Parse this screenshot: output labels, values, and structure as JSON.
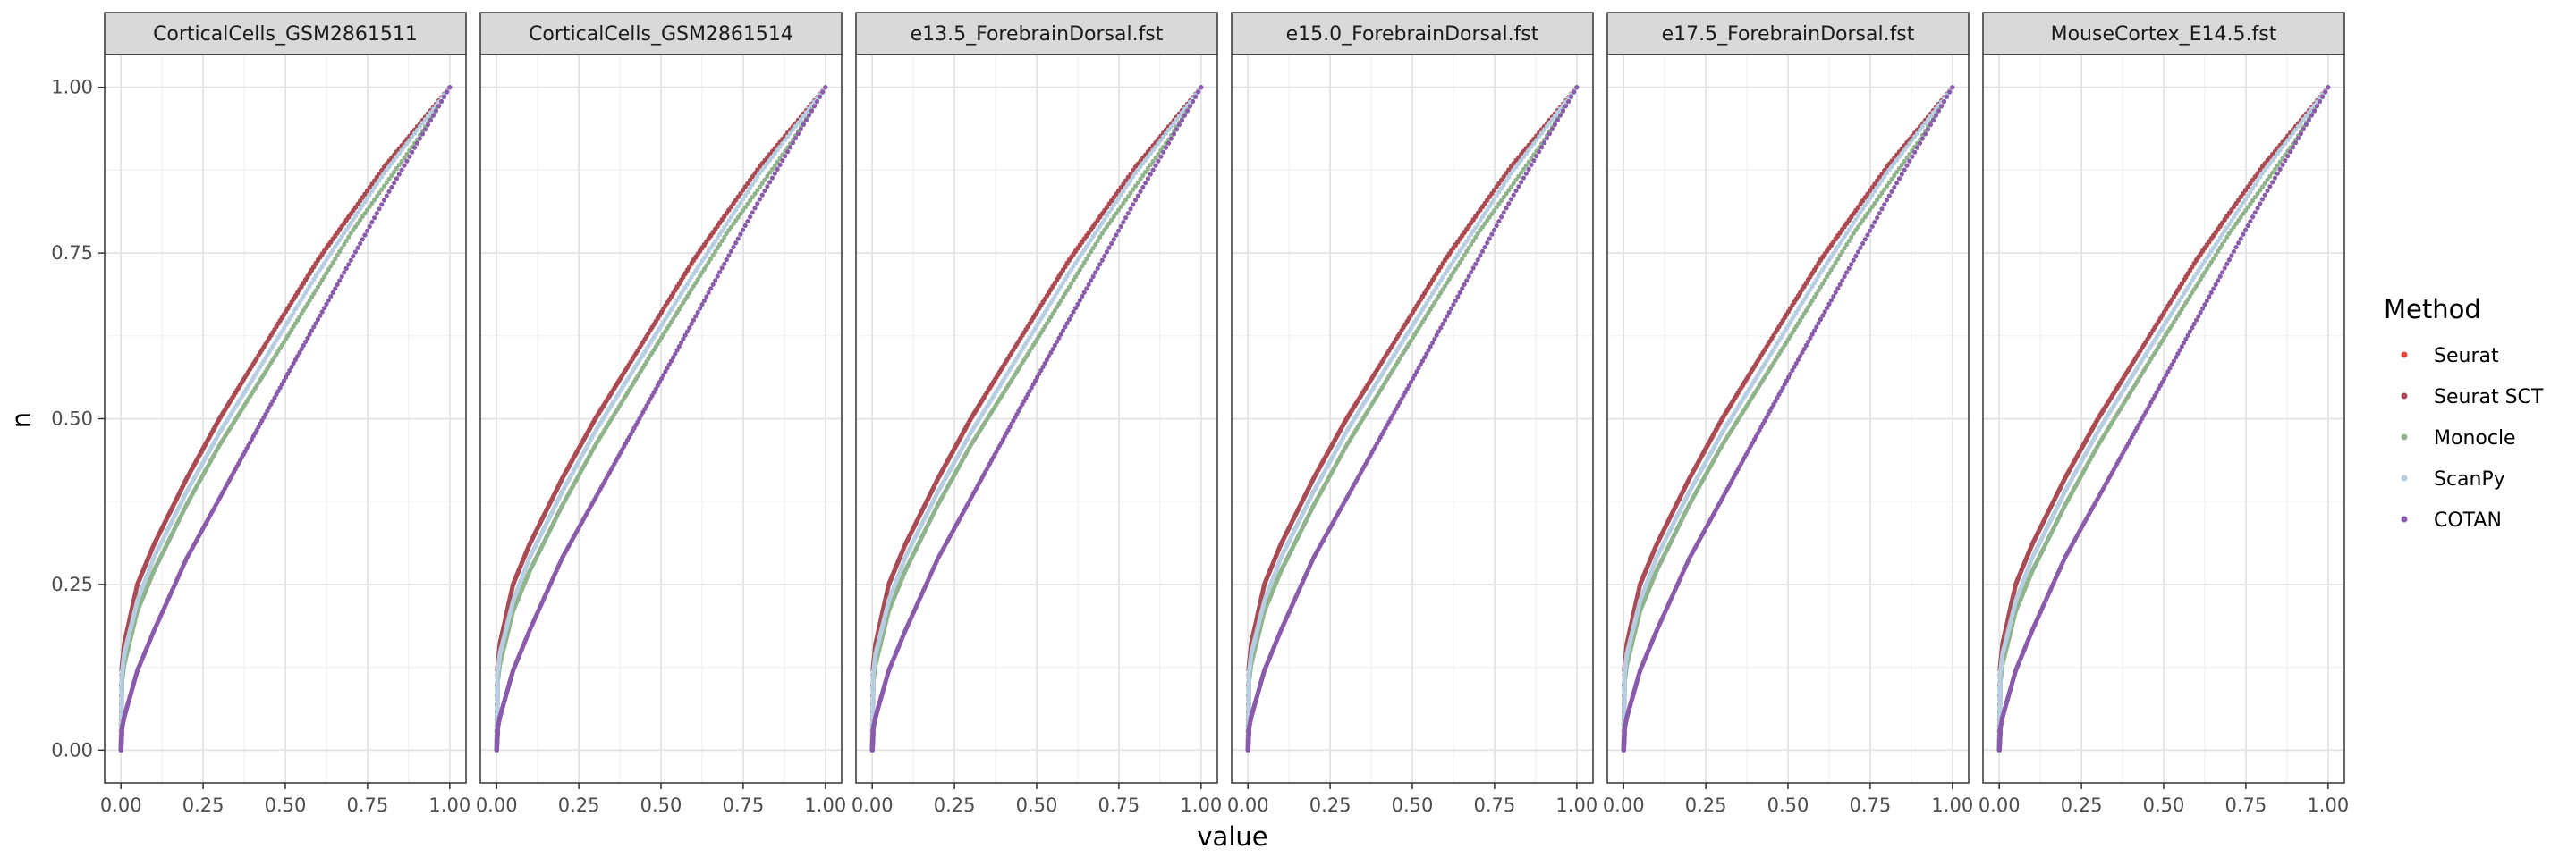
{
  "chart_data": {
    "type": "scatter",
    "xlabel": "value",
    "ylabel": "n",
    "xlim": [
      0,
      1
    ],
    "ylim": [
      0,
      1
    ],
    "x_ticks": [
      "0.00",
      "0.25",
      "0.50",
      "0.75",
      "1.00"
    ],
    "y_ticks": [
      "0.00",
      "0.25",
      "0.50",
      "0.75",
      "1.00"
    ],
    "grid": true,
    "legend": {
      "title": "Method",
      "position": "right"
    },
    "panels": [
      "CorticalCells_GSM2861511",
      "CorticalCells_GSM2861514",
      "e13.5_ForebrainDorsal.fst",
      "e15.0_ForebrainDorsal.fst",
      "e17.5_ForebrainDorsal.fst",
      "MouseCortex_E14.5.fst"
    ],
    "series": [
      {
        "name": "Seurat",
        "color": "#e8463c",
        "x": [
          0,
          0.002,
          0.01,
          0.05,
          0.1,
          0.2,
          0.3,
          0.4,
          0.5,
          0.6,
          0.7,
          0.8,
          0.9,
          1.0
        ],
        "y": [
          0.0,
          0.12,
          0.16,
          0.25,
          0.31,
          0.41,
          0.5,
          0.58,
          0.66,
          0.74,
          0.81,
          0.88,
          0.94,
          1.0
        ]
      },
      {
        "name": "Seurat SCT",
        "color": "#a84b55",
        "x": [
          0,
          0.002,
          0.01,
          0.05,
          0.1,
          0.2,
          0.3,
          0.4,
          0.5,
          0.6,
          0.7,
          0.8,
          0.9,
          1.0
        ],
        "y": [
          0.0,
          0.12,
          0.16,
          0.25,
          0.31,
          0.41,
          0.5,
          0.58,
          0.66,
          0.74,
          0.81,
          0.88,
          0.94,
          1.0
        ]
      },
      {
        "name": "Monocle",
        "color": "#8fb38a",
        "x": [
          0,
          0.002,
          0.01,
          0.05,
          0.1,
          0.2,
          0.3,
          0.4,
          0.5,
          0.6,
          0.7,
          0.8,
          0.9,
          1.0
        ],
        "y": [
          0.0,
          0.1,
          0.13,
          0.21,
          0.27,
          0.37,
          0.46,
          0.54,
          0.62,
          0.7,
          0.78,
          0.85,
          0.92,
          1.0
        ]
      },
      {
        "name": "ScanPy",
        "color": "#b7cde2",
        "x": [
          0,
          0.002,
          0.01,
          0.05,
          0.1,
          0.2,
          0.3,
          0.4,
          0.5,
          0.6,
          0.7,
          0.8,
          0.9,
          1.0
        ],
        "y": [
          0.0,
          0.11,
          0.145,
          0.225,
          0.29,
          0.39,
          0.48,
          0.56,
          0.64,
          0.72,
          0.795,
          0.87,
          0.935,
          1.0
        ]
      },
      {
        "name": "COTAN",
        "color": "#8a5aab",
        "x": [
          0,
          0.002,
          0.01,
          0.05,
          0.1,
          0.2,
          0.3,
          0.4,
          0.5,
          0.6,
          0.7,
          0.8,
          0.9,
          1.0
        ],
        "y": [
          0.0,
          0.03,
          0.05,
          0.12,
          0.18,
          0.29,
          0.38,
          0.47,
          0.56,
          0.65,
          0.74,
          0.83,
          0.915,
          1.0
        ]
      }
    ]
  }
}
